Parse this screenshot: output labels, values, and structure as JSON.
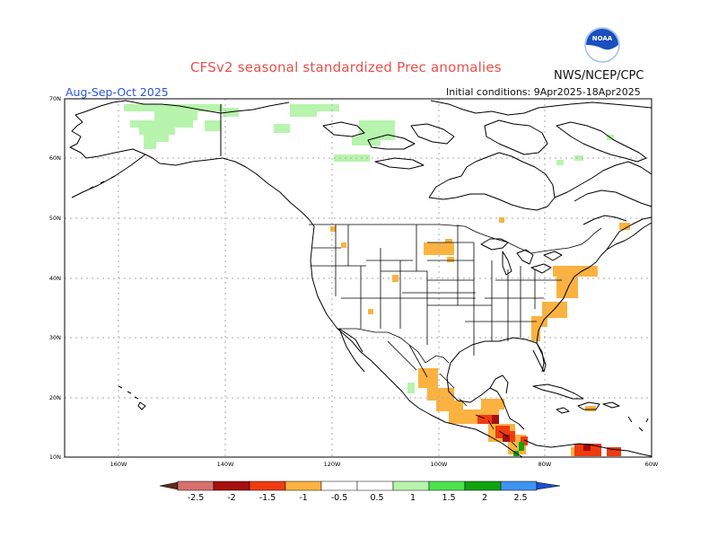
{
  "header": {
    "title": "CFSv2 seasonal standardized Prec anomalies",
    "agency": "NWS/NCEP/CPC",
    "season": "Aug-Sep-Oct 2025",
    "initial_conditions": "Initial conditions: 9Apr2025-18Apr2025"
  },
  "logo": {
    "text": "NOAA"
  },
  "map": {
    "lat_labels": [
      "70N",
      "60N",
      "50N",
      "40N",
      "30N",
      "20N",
      "10N"
    ],
    "lon_labels": [
      "160W",
      "140W",
      "120W",
      "100W",
      "80W",
      "60W"
    ]
  },
  "colorbar": {
    "ticks": [
      "-2.5",
      "-2",
      "-1.5",
      "-1",
      "-0.5",
      "0.5",
      "1",
      "1.5",
      "2",
      "2.5"
    ],
    "colors": {
      "below_min": "#5a2d1e",
      "lt_-2.5_-2": "#d8716d",
      "lt_-2_-1.5": "#a50f0f",
      "lt_-1.5_-1": "#ee3b10",
      "lt_-1_-0.5": "#fbb240",
      "neutral": "#ffffff",
      "0.5_1": "#b7f4ad",
      "1_1.5": "#4ce34c",
      "1.5_2": "#10a310",
      "2_2.5": "#3d94ef",
      "above_max": "#1c4fd6"
    }
  }
}
